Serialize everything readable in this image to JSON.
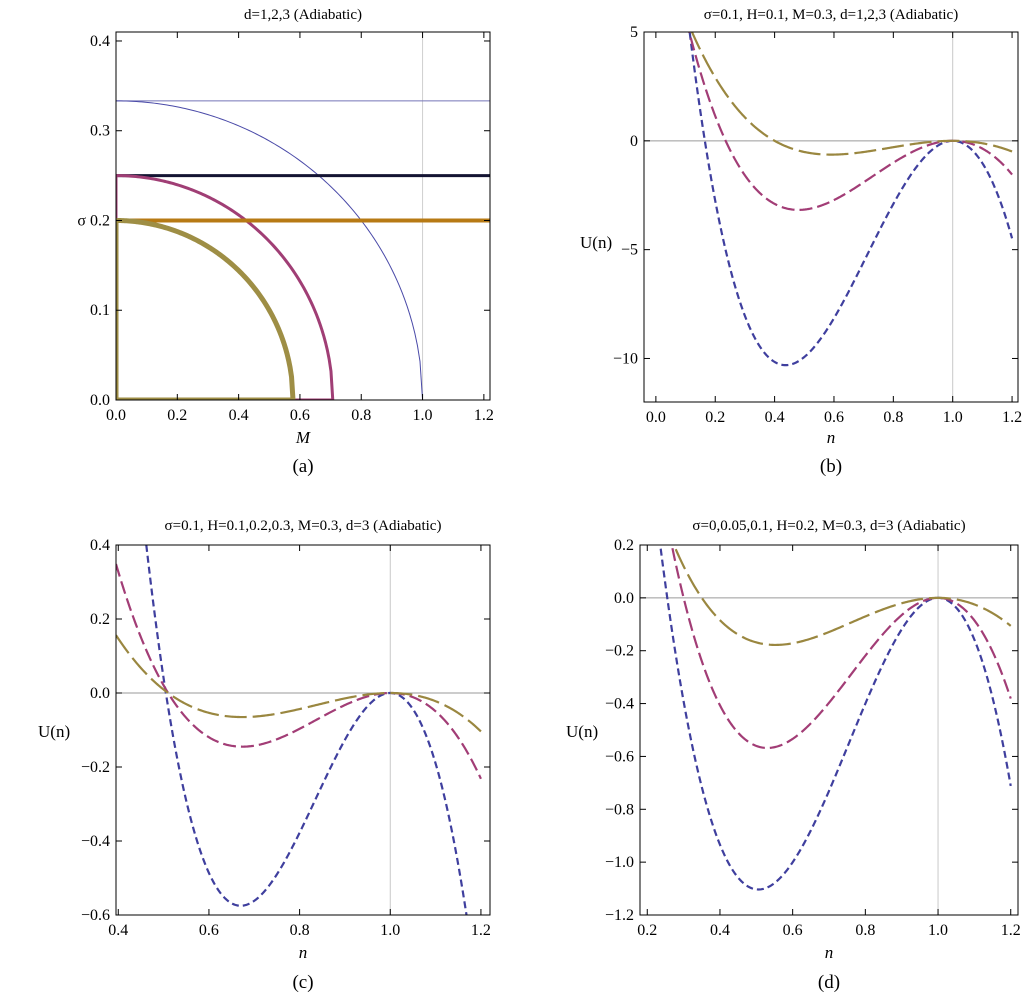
{
  "chart_data": [
    {
      "type": "line",
      "title": "d=1,2,3 (Adiabatic)",
      "xlabel": "M",
      "ylabel": "σ",
      "panel_label": "(a)",
      "xlim": [
        0,
        1.22
      ],
      "ylim": [
        0,
        0.41
      ],
      "xticks": [
        0.0,
        0.2,
        0.4,
        0.6,
        0.8,
        1.0,
        1.2
      ],
      "yticks": [
        0.0,
        0.1,
        0.2,
        0.3,
        0.4
      ],
      "xtick_labels": [
        "0.0",
        "0.2",
        "0.4",
        "0.6",
        "0.8",
        "1.0",
        "1.2"
      ],
      "ytick_labels": [
        "0.0",
        "0.1",
        "0.2",
        "0.3",
        "0.4"
      ],
      "ylabel_inline_tick": "σ 0.2",
      "vertical_line_x": 1.0,
      "series": [
        {
          "kind": "horizontal",
          "y": 0.3333,
          "color": "#7575b8",
          "width": 1
        },
        {
          "kind": "curve",
          "sigma0": 0.3333,
          "mmax": 1.0,
          "color": "#4a4aa8",
          "width": 1
        },
        {
          "kind": "horizontal",
          "y": 0.25,
          "color": "#141433",
          "width": 3
        },
        {
          "kind": "curve",
          "sigma0": 0.25,
          "mmax": 0.7071,
          "color": "#a03e75",
          "width": 3
        },
        {
          "kind": "horizontal",
          "y": 0.2,
          "color": "#b77a14",
          "width": 4
        },
        {
          "kind": "curve",
          "sigma0": 0.2,
          "mmax": 0.5774,
          "color": "#9e8e45",
          "width": 5
        }
      ]
    },
    {
      "type": "line",
      "title": "σ=0.1, H=0.1, M=0.3, d=1,2,3 (Adiabatic)",
      "xlabel": "n",
      "ylabel": "U(n)",
      "panel_label": "(b)",
      "xlim": [
        -0.04,
        1.22
      ],
      "ylim": [
        -12.0,
        5.0
      ],
      "xticks": [
        0.0,
        0.2,
        0.4,
        0.6,
        0.8,
        1.0,
        1.2
      ],
      "yticks": [
        5,
        0,
        -5,
        -10
      ],
      "xtick_labels": [
        "0.0",
        "0.2",
        "0.4",
        "0.6",
        "0.8",
        "1.0",
        "1.2"
      ],
      "ytick_labels": [
        "5",
        "0",
        "−5",
        "−10"
      ],
      "series": [
        {
          "n0": 0.165,
          "nmin": 0.47,
          "umin": -10.2,
          "u_end": -6.5,
          "color": "#3f3f9e",
          "dash": "7,4"
        },
        {
          "n0": 0.235,
          "nmin": 0.54,
          "umin": -3.05,
          "u_end": -2.2,
          "color": "#a23d76",
          "dash": "13,5"
        },
        {
          "n0": 0.4,
          "nmin": 0.68,
          "umin": -0.55,
          "u_end": -0.9,
          "color": "#9a8740",
          "dash": "22,6"
        }
      ]
    },
    {
      "type": "line",
      "title": "σ=0.1, H=0.1,0.2,0.3, M=0.3, d=3 (Adiabatic)",
      "xlabel": "n",
      "ylabel": "U(n)",
      "panel_label": "(c)",
      "xlim": [
        0.395,
        1.22
      ],
      "ylim": [
        -0.6,
        0.4
      ],
      "xticks": [
        0.4,
        0.6,
        0.8,
        1.0,
        1.2
      ],
      "yticks": [
        0.4,
        0.2,
        0.0,
        -0.2,
        -0.4,
        -0.6
      ],
      "xtick_labels": [
        "0.4",
        "0.6",
        "0.8",
        "1.0",
        "1.2"
      ],
      "ytick_labels": [
        "0.4",
        "0.2",
        "0.0",
        "−0.2",
        "−0.4",
        "−0.6"
      ],
      "series": [
        {
          "n0": 0.505,
          "nmin": 0.67,
          "umin": -0.575,
          "u_end": -1.5,
          "color": "#3f3f9e",
          "dash": "7,4"
        },
        {
          "n0": 0.51,
          "nmin": 0.67,
          "umin": -0.145,
          "u_end": -0.215,
          "color": "#a23d76",
          "dash": "13,5"
        },
        {
          "n0": 0.51,
          "nmin": 0.67,
          "umin": -0.065,
          "u_end": -0.1,
          "color": "#9a8740",
          "dash": "22,6"
        }
      ]
    },
    {
      "type": "line",
      "title": "σ=0,0.05,0.1, H=0.2, M=0.3, d=3 (Adiabatic)",
      "xlabel": "n",
      "ylabel": "U(n)",
      "panel_label": "(d)",
      "xlim": [
        0.18,
        1.22
      ],
      "ylim": [
        -1.2,
        0.2
      ],
      "xticks": [
        0.2,
        0.4,
        0.6,
        0.8,
        1.0,
        1.2
      ],
      "yticks": [
        0.2,
        0.0,
        -0.2,
        -0.4,
        -0.6,
        -0.8,
        -1.0,
        -1.2
      ],
      "xtick_labels": [
        "0.2",
        "0.4",
        "0.6",
        "0.8",
        "1.0",
        "1.2"
      ],
      "ytick_labels": [
        "0.2",
        "0.0",
        "−0.2",
        "−0.4",
        "−0.6",
        "−0.8",
        "−1.0",
        "−1.2"
      ],
      "series": [
        {
          "n0": 0.255,
          "nmin": 0.49,
          "umin": -1.1,
          "u_end": -0.6,
          "color": "#3f3f9e",
          "dash": "7,4"
        },
        {
          "n0": 0.3,
          "nmin": 0.55,
          "umin": -0.565,
          "u_end": -0.42,
          "color": "#a23d76",
          "dash": "13,5"
        },
        {
          "n0": 0.35,
          "nmin": 0.67,
          "umin": -0.145,
          "u_end": -0.215,
          "color": "#9a8740",
          "dash": "22,6"
        }
      ]
    }
  ]
}
